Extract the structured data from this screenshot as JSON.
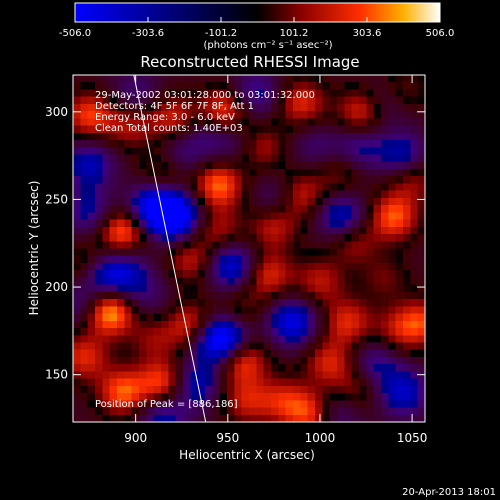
{
  "chart_data": {
    "type": "heatmap",
    "title": "Reconstructed RHESSI Image",
    "xlabel": "Heliocentric X (arcsec)",
    "ylabel": "Heliocentric Y (arcsec)",
    "xlim": [
      866,
      1057
    ],
    "ylim": [
      123,
      321
    ],
    "x_ticks": [
      900,
      950,
      1000,
      1050
    ],
    "y_ticks": [
      150,
      200,
      250,
      300
    ],
    "grid": false,
    "colorbar": {
      "min": -506.0,
      "max": 506.0,
      "tick_labels": [
        "-506.0",
        "-303.6",
        "-101.2",
        "101.2",
        "303.6",
        "506.0"
      ],
      "tick_values": [
        -506.0,
        -303.6,
        -101.2,
        101.2,
        303.6,
        506.0
      ],
      "units_label": "(photons cm⁻² s⁻¹ asec⁻²)"
    },
    "annotations": [
      "29-May-2002 03:01:28.000 to 03:01:32.000",
      "Detectors: 4F 5F 6F 7F 8F, Att 1",
      "Energy Range: 3.0 - 6.0 keV",
      "Clean    Total counts: 1.40E+03"
    ],
    "peak_label": "Position of Peak = [886,186]",
    "peak_position": [
      886,
      186
    ],
    "limb_line": [
      [
        899,
        321
      ],
      [
        938,
        123
      ]
    ],
    "blobs": [
      {
        "x": 886,
        "y": 186,
        "v": 506
      },
      {
        "x": 872,
        "y": 160,
        "v": 300
      },
      {
        "x": 893,
        "y": 232,
        "v": 420
      },
      {
        "x": 875,
        "y": 298,
        "v": 340
      },
      {
        "x": 897,
        "y": 292,
        "v": 230
      },
      {
        "x": 920,
        "y": 297,
        "v": 270
      },
      {
        "x": 948,
        "y": 300,
        "v": 380
      },
      {
        "x": 990,
        "y": 305,
        "v": 300
      },
      {
        "x": 1023,
        "y": 300,
        "v": 330
      },
      {
        "x": 1045,
        "y": 312,
        "v": 180
      },
      {
        "x": 945,
        "y": 258,
        "v": 400
      },
      {
        "x": 945,
        "y": 232,
        "v": 220
      },
      {
        "x": 930,
        "y": 215,
        "v": 250
      },
      {
        "x": 915,
        "y": 265,
        "v": 200
      },
      {
        "x": 968,
        "y": 280,
        "v": 240
      },
      {
        "x": 988,
        "y": 252,
        "v": 330
      },
      {
        "x": 975,
        "y": 235,
        "v": 270
      },
      {
        "x": 972,
        "y": 207,
        "v": 300
      },
      {
        "x": 1000,
        "y": 203,
        "v": 240
      },
      {
        "x": 1010,
        "y": 264,
        "v": 170
      },
      {
        "x": 1018,
        "y": 226,
        "v": 220
      },
      {
        "x": 1040,
        "y": 240,
        "v": 380
      },
      {
        "x": 1050,
        "y": 262,
        "v": 230
      },
      {
        "x": 1055,
        "y": 180,
        "v": 300
      },
      {
        "x": 1042,
        "y": 175,
        "v": 200
      },
      {
        "x": 1035,
        "y": 205,
        "v": 150
      },
      {
        "x": 1015,
        "y": 180,
        "v": 300
      },
      {
        "x": 1005,
        "y": 157,
        "v": 280
      },
      {
        "x": 1018,
        "y": 140,
        "v": 220
      },
      {
        "x": 995,
        "y": 128,
        "v": 330
      },
      {
        "x": 980,
        "y": 135,
        "v": 250
      },
      {
        "x": 960,
        "y": 135,
        "v": 250
      },
      {
        "x": 958,
        "y": 158,
        "v": 360
      },
      {
        "x": 932,
        "y": 177,
        "v": 440
      },
      {
        "x": 915,
        "y": 145,
        "v": 380
      },
      {
        "x": 893,
        "y": 140,
        "v": 380
      },
      {
        "x": 910,
        "y": 170,
        "v": 180
      },
      {
        "x": 958,
        "y": 188,
        "v": 150
      },
      {
        "x": 870,
        "y": 213,
        "v": 150
      },
      {
        "x": 910,
        "y": 245,
        "v": -506
      },
      {
        "x": 922,
        "y": 240,
        "v": -480
      },
      {
        "x": 948,
        "y": 170,
        "v": -480
      },
      {
        "x": 938,
        "y": 172,
        "v": -300
      },
      {
        "x": 952,
        "y": 212,
        "v": -400
      },
      {
        "x": 932,
        "y": 145,
        "v": -320
      },
      {
        "x": 915,
        "y": 127,
        "v": -280
      },
      {
        "x": 985,
        "y": 180,
        "v": -400
      },
      {
        "x": 1010,
        "y": 130,
        "v": -240
      },
      {
        "x": 1045,
        "y": 140,
        "v": -330
      },
      {
        "x": 1030,
        "y": 157,
        "v": -220
      },
      {
        "x": 1012,
        "y": 240,
        "v": -340
      },
      {
        "x": 978,
        "y": 250,
        "v": -250
      },
      {
        "x": 1045,
        "y": 275,
        "v": -300
      },
      {
        "x": 1022,
        "y": 280,
        "v": -220
      },
      {
        "x": 1035,
        "y": 305,
        "v": -200
      },
      {
        "x": 998,
        "y": 280,
        "v": -150
      },
      {
        "x": 925,
        "y": 275,
        "v": -180
      },
      {
        "x": 875,
        "y": 270,
        "v": -300
      },
      {
        "x": 875,
        "y": 243,
        "v": -250
      },
      {
        "x": 885,
        "y": 205,
        "v": -300
      },
      {
        "x": 870,
        "y": 190,
        "v": -180
      },
      {
        "x": 900,
        "y": 310,
        "v": -180
      },
      {
        "x": 940,
        "y": 288,
        "v": -170
      },
      {
        "x": 965,
        "y": 310,
        "v": -250
      },
      {
        "x": 955,
        "y": 283,
        "v": -150
      },
      {
        "x": 895,
        "y": 210,
        "v": -200
      },
      {
        "x": 905,
        "y": 195,
        "v": -150
      }
    ]
  },
  "timestamp": "20-Apr-2013 18:01"
}
